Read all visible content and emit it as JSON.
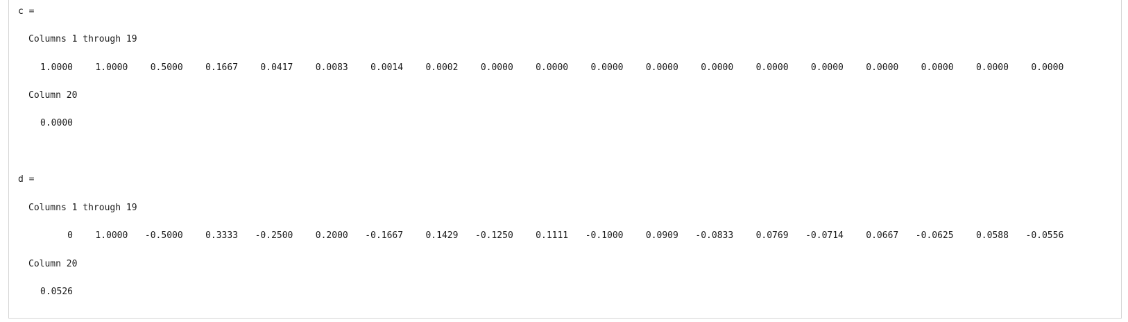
{
  "outputs": [
    {
      "name_line": "c =",
      "block1_label": "Columns 1 through 19",
      "block1_values": [
        "1.0000",
        "1.0000",
        "0.5000",
        "0.1667",
        "0.0417",
        "0.0083",
        "0.0014",
        "0.0002",
        "0.0000",
        "0.0000",
        "0.0000",
        "0.0000",
        "0.0000",
        "0.0000",
        "0.0000",
        "0.0000",
        "0.0000",
        "0.0000",
        "0.0000"
      ],
      "block2_label": "Column 20",
      "block2_values": [
        "0.0000"
      ]
    },
    {
      "name_line": "d =",
      "block1_label": "Columns 1 through 19",
      "block1_values": [
        "0",
        "1.0000",
        "-0.5000",
        "0.3333",
        "-0.2500",
        "0.2000",
        "-0.1667",
        "0.1429",
        "-0.1250",
        "0.1111",
        "-0.1000",
        "0.0909",
        "-0.0833",
        "0.0769",
        "-0.0714",
        "0.0667",
        "-0.0625",
        "0.0588",
        "-0.0556"
      ],
      "block2_label": "Column 20",
      "block2_values": [
        "0.0526"
      ]
    }
  ]
}
